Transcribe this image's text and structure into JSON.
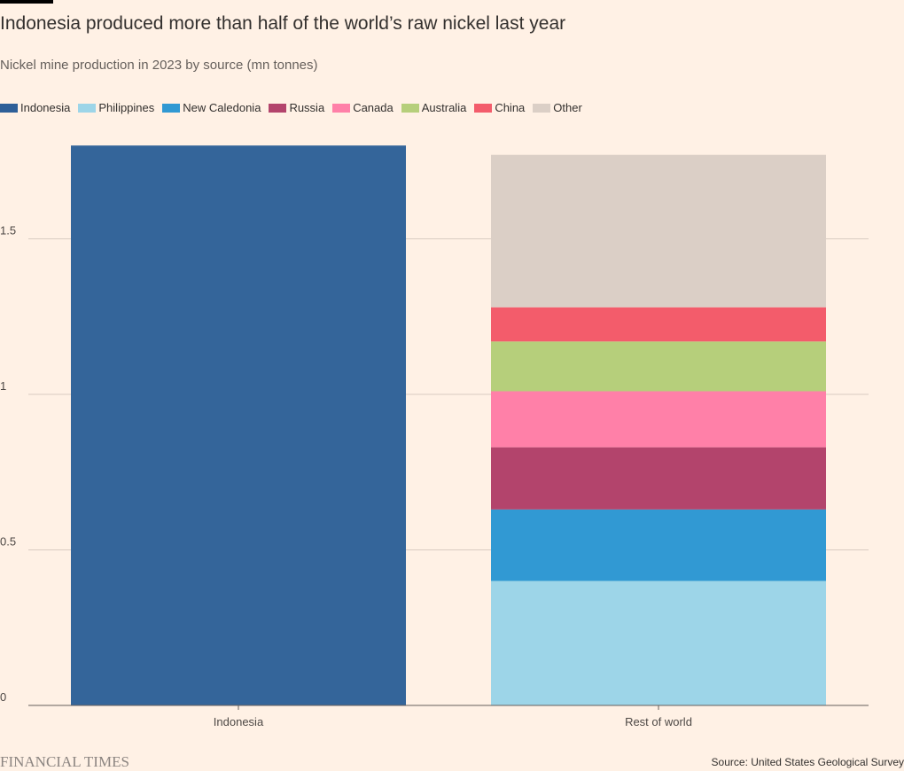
{
  "header": {
    "title": "Indonesia produced more than half of the world’s raw nickel last year",
    "subtitle": "Nickel mine production in 2023 by source (mn tonnes)"
  },
  "legend": [
    {
      "label": "Indonesia",
      "color": "#2e5f98"
    },
    {
      "label": "Philippines",
      "color": "#9dd5e8"
    },
    {
      "label": "New Caledonia",
      "color": "#3199d3"
    },
    {
      "label": "Russia",
      "color": "#b3446c"
    },
    {
      "label": "Canada",
      "color": "#ff80a8"
    },
    {
      "label": "Australia",
      "color": "#b6cf7b"
    },
    {
      "label": "China",
      "color": "#f35c6b"
    },
    {
      "label": "Other",
      "color": "#dbcfc6"
    }
  ],
  "chart_data": {
    "type": "bar",
    "stacked": true,
    "categories": [
      "Indonesia",
      "Rest of world"
    ],
    "series": [
      {
        "name": "Indonesia",
        "color": "#34659a",
        "values": [
          1.8,
          0
        ]
      },
      {
        "name": "Philippines",
        "color": "#9dd5e8",
        "values": [
          0,
          0.4
        ]
      },
      {
        "name": "New Caledonia",
        "color": "#3199d3",
        "values": [
          0,
          0.23
        ]
      },
      {
        "name": "Russia",
        "color": "#b3446c",
        "values": [
          0,
          0.2
        ]
      },
      {
        "name": "Canada",
        "color": "#ff80a8",
        "values": [
          0,
          0.18
        ]
      },
      {
        "name": "Australia",
        "color": "#b6cf7b",
        "values": [
          0,
          0.16
        ]
      },
      {
        "name": "China",
        "color": "#f35c6b",
        "values": [
          0,
          0.11
        ]
      },
      {
        "name": "Other",
        "color": "#dbcfc6",
        "values": [
          0,
          0.49
        ]
      }
    ],
    "yticks": [
      {
        "value": 0,
        "label": "0"
      },
      {
        "value": 0.5,
        "label": "0.5"
      },
      {
        "value": 1,
        "label": "1"
      },
      {
        "value": 1.5,
        "label": "1.5"
      }
    ],
    "ylim": [
      0,
      1.8
    ],
    "grid": true,
    "legend_position": "top-left"
  },
  "footer": {
    "brand": "FINANCIAL TIMES",
    "source": "Source: United States Geological Survey"
  }
}
